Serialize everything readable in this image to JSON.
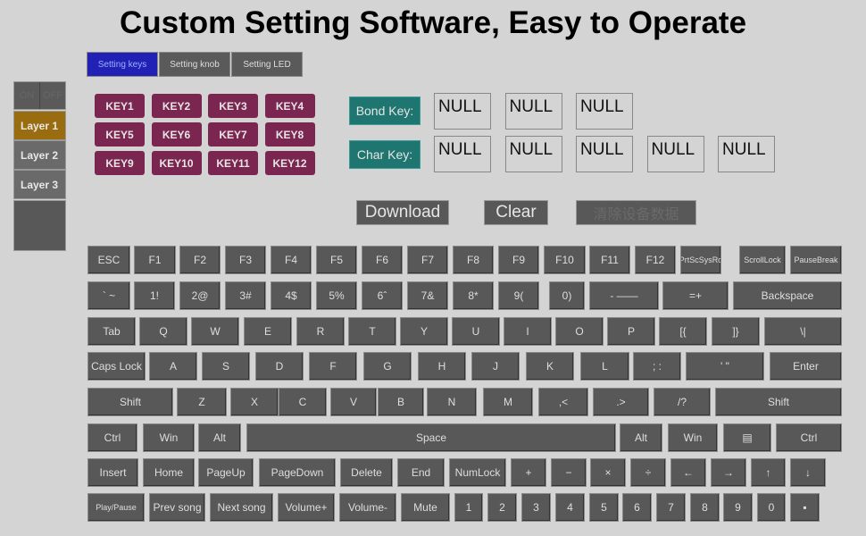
{
  "title": "Custom Setting Software, Easy to Operate",
  "tabs": [
    {
      "label": "Setting keys",
      "active": true
    },
    {
      "label": "Setting knob"
    },
    {
      "label": "Setting LED"
    }
  ],
  "toggle": {
    "on": "ON",
    "off": "OFF"
  },
  "layers": [
    {
      "label": "Layer 1",
      "active": true
    },
    {
      "label": "Layer 2"
    },
    {
      "label": "Layer 3"
    }
  ],
  "macro_keys": [
    "KEY1",
    "KEY2",
    "KEY3",
    "KEY4",
    "KEY5",
    "KEY6",
    "KEY7",
    "KEY8",
    "KEY9",
    "KEY10",
    "KEY11",
    "KEY12"
  ],
  "bond_key": {
    "label": "Bond Key:",
    "slots": [
      "NULL",
      "NULL",
      "NULL"
    ]
  },
  "char_key": {
    "label": "Char Key:",
    "slots": [
      "NULL",
      "NULL",
      "NULL",
      "NULL",
      "NULL"
    ]
  },
  "actions": {
    "download": "Download",
    "clear": "Clear",
    "clear_device": "清除设备数据"
  },
  "colors": {
    "active_tab": "#2121b5",
    "active_layer": "#9a6c10",
    "macro_key": "#7b2650",
    "label_bg": "#1f7570",
    "key_bg": "#585858"
  },
  "keyboard": [
    [
      "ESC",
      "F1",
      "F2",
      "F3",
      "F4",
      "F5",
      "F6",
      "F7",
      "F8",
      "F9",
      "F10",
      "F11",
      "F12",
      "PrtScSysRq",
      "ScrollLock",
      "PauseBreak"
    ],
    [
      "` ~",
      "1!",
      "2@",
      "3#",
      "4$",
      "5%",
      "6ˆ",
      "7&",
      "8*",
      "9(",
      "0)",
      "- ——",
      "=+",
      "Backspace"
    ],
    [
      "Tab",
      "Q",
      "W",
      "E",
      "R",
      "T",
      "Y",
      "U",
      "I",
      "O",
      "P",
      "[{",
      "]}",
      "\\|"
    ],
    [
      "Caps Lock",
      "A",
      "S",
      "D",
      "F",
      "G",
      "H",
      "J",
      "K",
      "L",
      "; :",
      "' \"",
      "Enter"
    ],
    [
      "Shift",
      "Z",
      "X",
      "C",
      "V",
      "B",
      "N",
      "M",
      ",<",
      ".>",
      "/?",
      "Shift"
    ],
    [
      "Ctrl",
      "Win",
      "Alt",
      "Space",
      "Alt",
      "Win",
      "▤",
      "Ctrl"
    ],
    [
      "Insert",
      "Home",
      "PageUp",
      "PageDown",
      "Delete",
      "End",
      "NumLock",
      "+",
      "−",
      "×",
      "÷",
      "←",
      "→",
      "↑",
      "↓"
    ],
    [
      "Play/Pause",
      "Prev song",
      "Next song",
      "Volume+",
      "Volume-",
      "Mute",
      "1",
      "2",
      "3",
      "4",
      "5",
      "6",
      "7",
      "8",
      "9",
      "0",
      "▪"
    ]
  ]
}
